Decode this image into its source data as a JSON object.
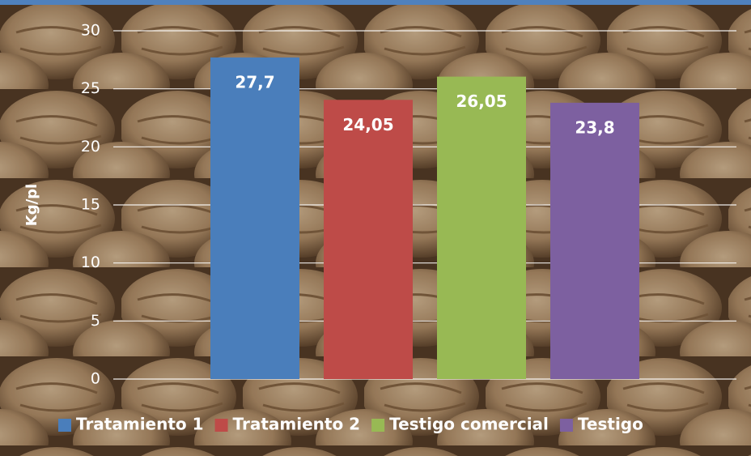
{
  "chart_data": {
    "type": "bar",
    "y_label": "Kg/pl",
    "ylim": [
      0,
      30
    ],
    "yticks": [
      0,
      5,
      10,
      15,
      20,
      25,
      30
    ],
    "grid": true,
    "legend": "bottom",
    "series": [
      {
        "name": "Tratamiento 1",
        "color": "#4a7ebb",
        "values": [
          27.7
        ],
        "value_labels": [
          "27,7"
        ]
      },
      {
        "name": "Tratamiento 2",
        "color": "#be4b48",
        "values": [
          24.05
        ],
        "value_labels": [
          "24,05"
        ]
      },
      {
        "name": "Testigo comercial",
        "color": "#98b954",
        "values": [
          26.05
        ],
        "value_labels": [
          "26,05"
        ]
      },
      {
        "name": "Testigo",
        "color": "#7d60a0",
        "values": [
          23.8
        ],
        "value_labels": [
          "23,8"
        ]
      }
    ]
  }
}
